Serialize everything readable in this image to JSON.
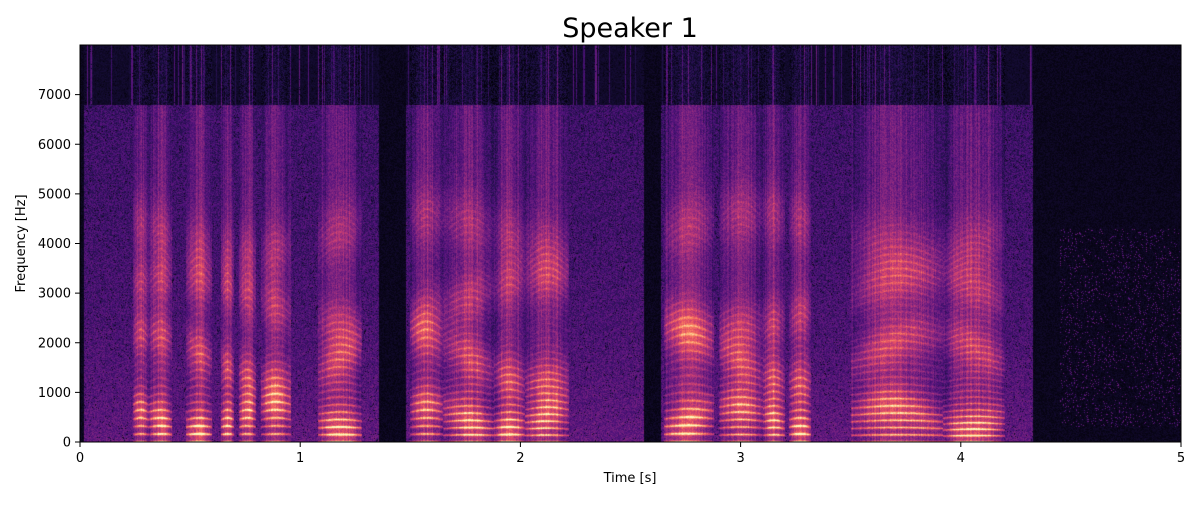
{
  "chart_data": {
    "type": "heatmap",
    "title": "Speaker 1",
    "xlabel": "Time [s]",
    "ylabel": "Frequency [Hz]",
    "xlim": [
      0,
      5
    ],
    "ylim": [
      0,
      8000
    ],
    "x_ticks": [
      0,
      1,
      2,
      3,
      4,
      5
    ],
    "y_ticks": [
      0,
      1000,
      2000,
      3000,
      4000,
      5000,
      6000,
      7000
    ],
    "x_tick_labels": [
      "0",
      "1",
      "2",
      "3",
      "4",
      "5"
    ],
    "y_tick_labels": [
      "0",
      "1000",
      "2000",
      "3000",
      "4000",
      "5000",
      "6000",
      "7000"
    ],
    "grid": false,
    "colormap": [
      "#000004",
      "#1c1044",
      "#4f127b",
      "#812581",
      "#b5367a",
      "#e55064",
      "#fb8761",
      "#fec287",
      "#fcfdbf"
    ],
    "voiced_segments": [
      {
        "start": 0.24,
        "end": 0.31,
        "f0": 150
      },
      {
        "start": 0.31,
        "end": 0.42,
        "f0": 150
      },
      {
        "start": 0.48,
        "end": 0.6,
        "f0": 150
      },
      {
        "start": 0.64,
        "end": 0.7,
        "f0": 150
      },
      {
        "start": 0.72,
        "end": 0.8,
        "f0": 150
      },
      {
        "start": 0.82,
        "end": 0.96,
        "f0": 150
      },
      {
        "start": 1.08,
        "end": 1.28,
        "f0": 140
      },
      {
        "start": 1.5,
        "end": 1.65,
        "f0": 150
      },
      {
        "start": 1.65,
        "end": 1.88,
        "f0": 135
      },
      {
        "start": 1.88,
        "end": 2.02,
        "f0": 140
      },
      {
        "start": 2.02,
        "end": 2.22,
        "f0": 130
      },
      {
        "start": 2.65,
        "end": 2.88,
        "f0": 155
      },
      {
        "start": 2.9,
        "end": 3.1,
        "f0": 140
      },
      {
        "start": 3.1,
        "end": 3.2,
        "f0": 135
      },
      {
        "start": 3.22,
        "end": 3.32,
        "f0": 150
      },
      {
        "start": 3.5,
        "end": 3.92,
        "f0": 135
      },
      {
        "start": 3.92,
        "end": 4.2,
        "f0": 120
      }
    ],
    "silence_segments": [
      {
        "start": 1.36,
        "end": 1.48
      },
      {
        "start": 2.56,
        "end": 2.64
      },
      {
        "start": 4.33,
        "end": 5.0
      }
    ]
  }
}
